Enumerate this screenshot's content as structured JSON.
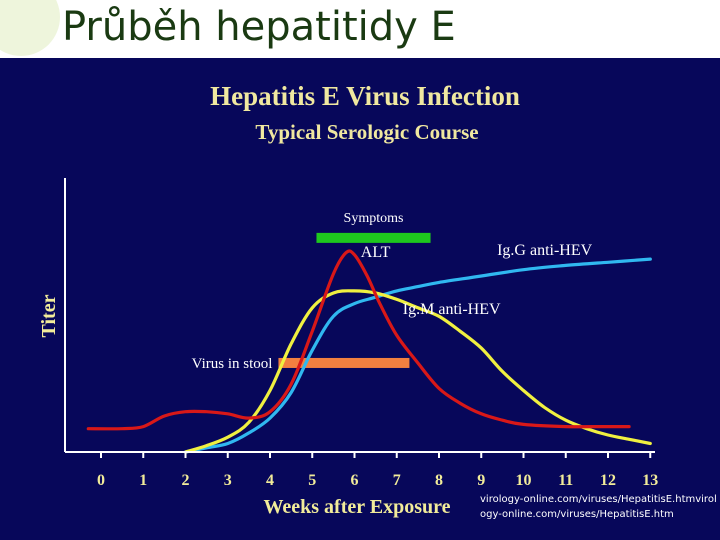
{
  "slide": {
    "title": "Průběh hepatitidy E",
    "source_note": "virology-online.com/viruses/HepatitisE.htmvirology-online.com/viruses/HepatitisE.htm"
  },
  "colors": {
    "panel_background": "#07075a",
    "axis": "#ffffff",
    "chart_title": "#f0e8a0",
    "tick_label": "#f2ec9a",
    "axis_label": "#f2ec9a",
    "symptoms_bar": "#1ec81e",
    "virus_bar": "#f28040",
    "alt_curve": "#d81818",
    "igm_curve": "#f0f040",
    "igg_curve": "#30b8f0",
    "annotation_text": "#ffffff"
  },
  "chart_data": {
    "type": "line",
    "title": "Hepatitis E Virus Infection",
    "subtitle": "Typical Serologic Course",
    "xlabel": "Weeks after Exposure",
    "ylabel": "Titer",
    "xlim": [
      -0.3,
      13.3
    ],
    "ylim": [
      0,
      100
    ],
    "ticks": [
      "0",
      "1",
      "2",
      "3",
      "4",
      "5",
      "6",
      "7",
      "8",
      "9",
      "10",
      "11",
      "12",
      "13"
    ],
    "series": [
      {
        "name": "ALT",
        "color": "#d81818",
        "points": [
          [
            -0.3,
            11
          ],
          [
            0.5,
            11
          ],
          [
            1.0,
            12
          ],
          [
            1.5,
            17
          ],
          [
            2.0,
            19
          ],
          [
            2.5,
            19
          ],
          [
            3.0,
            18
          ],
          [
            3.5,
            16
          ],
          [
            4.0,
            19
          ],
          [
            4.5,
            32
          ],
          [
            5.0,
            57
          ],
          [
            5.5,
            84
          ],
          [
            5.8,
            94
          ],
          [
            6.0,
            93
          ],
          [
            6.3,
            83
          ],
          [
            6.6,
            70
          ],
          [
            7.0,
            55
          ],
          [
            7.5,
            42
          ],
          [
            8.0,
            30
          ],
          [
            8.5,
            23
          ],
          [
            9.0,
            18
          ],
          [
            9.5,
            15
          ],
          [
            10.0,
            13
          ],
          [
            11.0,
            12
          ],
          [
            12.0,
            12
          ],
          [
            12.5,
            12
          ]
        ]
      },
      {
        "name": "IgM anti-HEV",
        "color": "#f0f040",
        "points": [
          [
            2.0,
            0
          ],
          [
            2.5,
            3
          ],
          [
            3.0,
            7
          ],
          [
            3.5,
            14
          ],
          [
            4.0,
            29
          ],
          [
            4.5,
            51
          ],
          [
            5.0,
            68
          ],
          [
            5.5,
            75
          ],
          [
            6.0,
            76
          ],
          [
            6.5,
            75
          ],
          [
            7.0,
            72
          ],
          [
            7.5,
            68
          ],
          [
            8.0,
            64
          ],
          [
            8.5,
            57
          ],
          [
            9.0,
            49
          ],
          [
            9.5,
            38
          ],
          [
            10.0,
            29
          ],
          [
            10.5,
            21
          ],
          [
            11.0,
            15
          ],
          [
            11.5,
            11
          ],
          [
            12.0,
            8
          ],
          [
            12.5,
            6
          ],
          [
            13.0,
            4
          ]
        ]
      },
      {
        "name": "Ig.G anti-HEV",
        "color": "#30b8f0",
        "points": [
          [
            2.0,
            0
          ],
          [
            2.5,
            2
          ],
          [
            3.0,
            4
          ],
          [
            3.5,
            9
          ],
          [
            4.0,
            16
          ],
          [
            4.5,
            28
          ],
          [
            5.0,
            48
          ],
          [
            5.5,
            64
          ],
          [
            6.0,
            70
          ],
          [
            6.5,
            73
          ],
          [
            7.0,
            76
          ],
          [
            7.5,
            78
          ],
          [
            8.0,
            80
          ],
          [
            9.0,
            83
          ],
          [
            10.0,
            86
          ],
          [
            11.0,
            88
          ],
          [
            12.0,
            89.5
          ],
          [
            13.0,
            91
          ]
        ]
      }
    ],
    "intervals": [
      {
        "name": "Symptoms",
        "color": "#1ec81e",
        "start": 5.1,
        "end": 7.8,
        "level": 101
      },
      {
        "name": "Virus in stool",
        "color": "#f28040",
        "start": 4.2,
        "end": 7.3,
        "level": 42
      }
    ],
    "annotations": [
      {
        "text": "ALT",
        "x": 6.5,
        "y": 92
      },
      {
        "text": "Ig.G anti-HEV",
        "x": 10.5,
        "y": 93
      },
      {
        "text": "Ig.M anti-HEV",
        "x": 8.3,
        "y": 65
      }
    ]
  }
}
